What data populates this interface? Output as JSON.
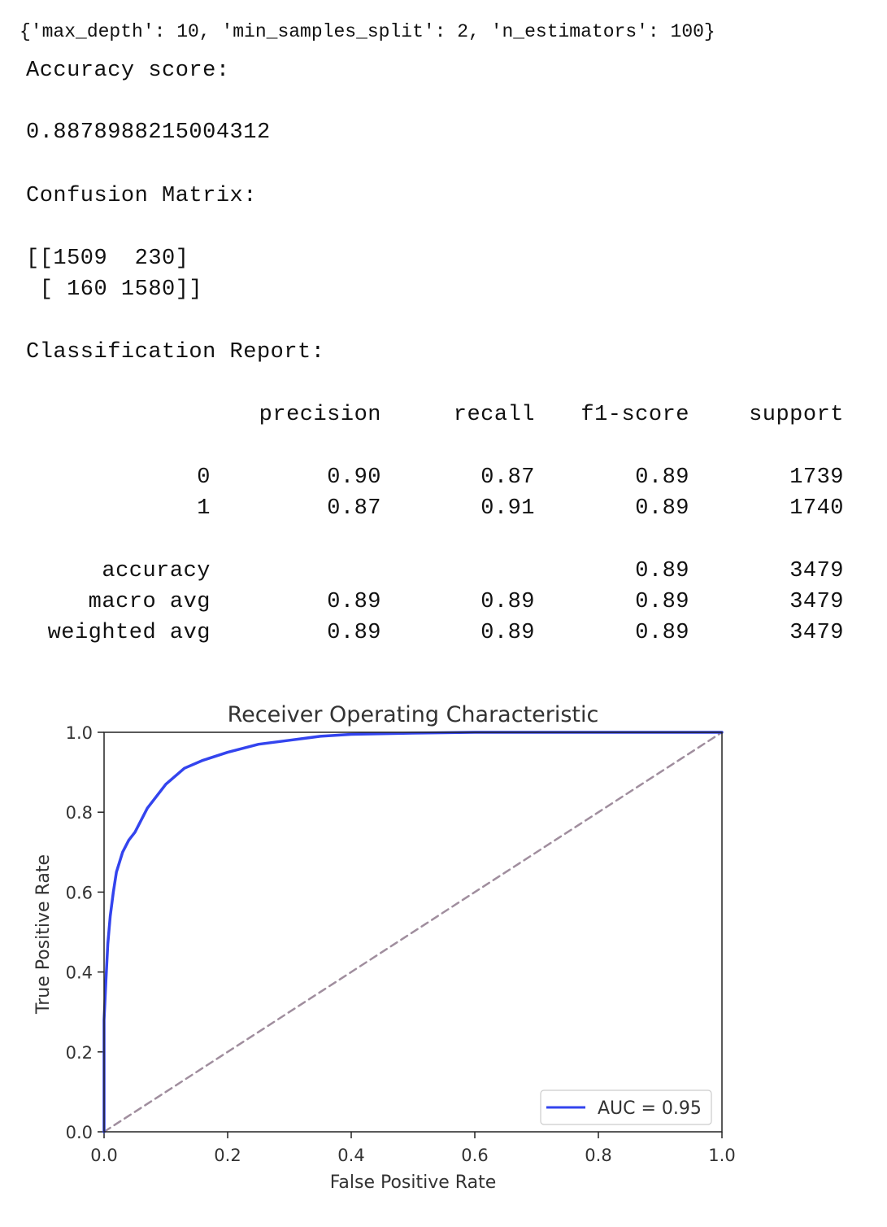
{
  "output": {
    "params": "{'max_depth': 10, 'min_samples_split': 2, 'n_estimators': 100}",
    "accuracy_label": "Accuracy score:",
    "accuracy_value": "0.8878988215004312",
    "confusion_label": "Confusion Matrix:",
    "confusion_row1": "[[1509  230]",
    "confusion_row2": " [ 160 1580]]",
    "report_label": "Classification Report:"
  },
  "report": {
    "headers": [
      "precision",
      "recall",
      "f1-score",
      "support"
    ],
    "rows": [
      {
        "label": "0",
        "precision": "0.90",
        "recall": "0.87",
        "f1": "0.89",
        "support": "1739"
      },
      {
        "label": "1",
        "precision": "0.87",
        "recall": "0.91",
        "f1": "0.89",
        "support": "1740"
      },
      {
        "label": "accuracy",
        "precision": "",
        "recall": "",
        "f1": "0.89",
        "support": "3479"
      },
      {
        "label": "macro avg",
        "precision": "0.89",
        "recall": "0.89",
        "f1": "0.89",
        "support": "3479"
      },
      {
        "label": "weighted avg",
        "precision": "0.89",
        "recall": "0.89",
        "f1": "0.89",
        "support": "3479"
      }
    ]
  },
  "chart_data": {
    "type": "line",
    "title": "Receiver Operating Characteristic",
    "xlabel": "False Positive Rate",
    "ylabel": "True Positive Rate",
    "xlim": [
      0.0,
      1.0
    ],
    "ylim": [
      0.0,
      1.0
    ],
    "xticks": [
      "0.0",
      "0.2",
      "0.4",
      "0.6",
      "0.8",
      "1.0"
    ],
    "yticks": [
      "0.0",
      "0.2",
      "0.4",
      "0.6",
      "0.8",
      "1.0"
    ],
    "grid": false,
    "legend_position": "lower-right",
    "series": [
      {
        "name": "AUC = 0.95",
        "color": "#3344ee",
        "x": [
          0.0,
          0.0,
          0.003,
          0.006,
          0.01,
          0.015,
          0.02,
          0.03,
          0.04,
          0.05,
          0.07,
          0.1,
          0.13,
          0.16,
          0.2,
          0.25,
          0.3,
          0.35,
          0.4,
          0.5,
          0.6,
          0.7,
          0.8,
          0.9,
          1.0
        ],
        "y": [
          0.0,
          0.28,
          0.38,
          0.47,
          0.54,
          0.6,
          0.65,
          0.7,
          0.73,
          0.75,
          0.81,
          0.87,
          0.91,
          0.93,
          0.95,
          0.97,
          0.98,
          0.99,
          0.995,
          0.998,
          1.0,
          1.0,
          1.0,
          1.0,
          1.0
        ]
      },
      {
        "color": "#a08e9e",
        "dashed": true,
        "x": [
          0.0,
          1.0
        ],
        "y": [
          0.0,
          1.0
        ]
      }
    ]
  }
}
